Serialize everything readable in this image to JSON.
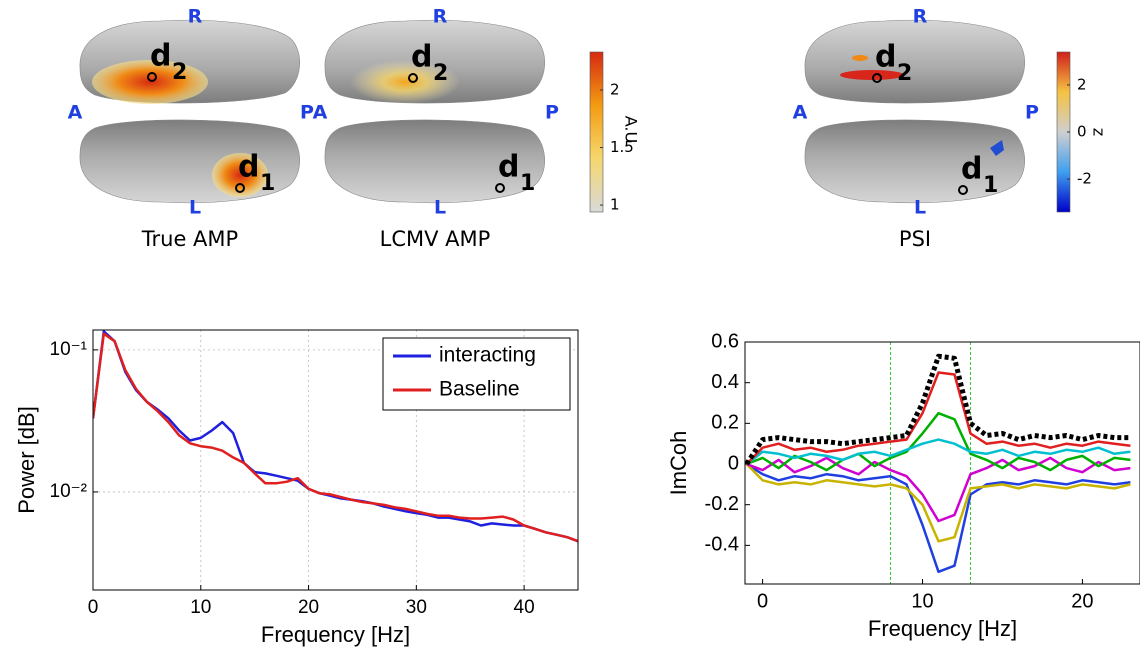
{
  "brain_panels": [
    {
      "title": "True AMP",
      "orientation": {
        "top": "R",
        "left": "A",
        "right": "P",
        "bottom": "L"
      },
      "sources": [
        {
          "letter": "d",
          "index": "2"
        },
        {
          "letter": "d",
          "index": "1"
        }
      ]
    },
    {
      "title": "LCMV AMP",
      "orientation": {
        "top": "R",
        "left": "A",
        "right": "P",
        "bottom": "L"
      },
      "sources": [
        {
          "letter": "d",
          "index": "2"
        },
        {
          "letter": "d",
          "index": "1"
        }
      ]
    },
    {
      "title": "PSI",
      "orientation": {
        "top": "R",
        "left": "A",
        "right": "P",
        "bottom": "L"
      },
      "sources": [
        {
          "letter": "d",
          "index": "2"
        },
        {
          "letter": "d",
          "index": "1"
        }
      ]
    }
  ],
  "colorbars": [
    {
      "label": "A.U.",
      "range": [
        0.94,
        2.33
      ],
      "ticks": [
        1,
        1.5,
        2
      ],
      "colors": [
        "#d9d9d9",
        "#f5d76e",
        "#f39c12",
        "#d62a12"
      ]
    },
    {
      "label": "z",
      "range": [
        -3.4,
        3.4
      ],
      "ticks": [
        -2,
        0,
        2
      ],
      "colors": [
        "#0000c8",
        "#3f9ff0",
        "#cfcfcf",
        "#f5c242",
        "#d0201a"
      ]
    }
  ],
  "chart_data": [
    {
      "type": "line",
      "yscale": "log",
      "grid": true,
      "legend": "top-right",
      "xlabel": "Frequency [Hz]",
      "ylabel": "Power [dB]",
      "xlim": [
        0,
        45
      ],
      "xticks": [
        0,
        10,
        20,
        30,
        40
      ],
      "ylim": [
        0.00204,
        0.138
      ],
      "yticks": [
        {
          "value": 0.01,
          "label": "10⁻²"
        },
        {
          "value": 0.1,
          "label": "10⁻¹"
        }
      ],
      "x": [
        0,
        1,
        2,
        3,
        4,
        5,
        6,
        7,
        8,
        9,
        10,
        11,
        12,
        13,
        14,
        15,
        16,
        17,
        18,
        19,
        20,
        21,
        22,
        23,
        24,
        25,
        26,
        27,
        28,
        29,
        30,
        31,
        32,
        33,
        34,
        35,
        36,
        37,
        38,
        39,
        40,
        41,
        42,
        43,
        44,
        45
      ],
      "series": [
        {
          "name": "interacting",
          "color": "#1f1fe0",
          "values": [
            0.033,
            0.135,
            0.115,
            0.07,
            0.052,
            0.043,
            0.038,
            0.033,
            0.027,
            0.023,
            0.024,
            0.027,
            0.031,
            0.026,
            0.016,
            0.0138,
            0.0135,
            0.013,
            0.0125,
            0.012,
            0.0105,
            0.0098,
            0.0094,
            0.009,
            0.0088,
            0.0086,
            0.0083,
            0.0079,
            0.0076,
            0.0073,
            0.0071,
            0.0069,
            0.0066,
            0.0066,
            0.0064,
            0.0062,
            0.0058,
            0.006,
            0.0059,
            0.0058,
            0.0058,
            0.0055,
            0.0052,
            0.005,
            0.0048,
            0.0045
          ]
        },
        {
          "name": "Baseline",
          "color": "#e01f1f",
          "values": [
            0.033,
            0.13,
            0.115,
            0.072,
            0.053,
            0.043,
            0.037,
            0.031,
            0.025,
            0.022,
            0.021,
            0.0205,
            0.0195,
            0.0175,
            0.016,
            0.0135,
            0.0115,
            0.0115,
            0.0118,
            0.0125,
            0.0105,
            0.0098,
            0.0096,
            0.0092,
            0.0088,
            0.0085,
            0.0083,
            0.0081,
            0.0078,
            0.0076,
            0.0073,
            0.007,
            0.0068,
            0.0068,
            0.0066,
            0.0065,
            0.0065,
            0.0066,
            0.0067,
            0.0064,
            0.0058,
            0.0055,
            0.0052,
            0.005,
            0.0048,
            0.0045
          ]
        }
      ]
    },
    {
      "type": "line",
      "yscale": "linear",
      "grid": false,
      "xlabel": "Frequency [Hz]",
      "ylabel": "ImCoh",
      "xlim": [
        -1.1,
        23.6
      ],
      "xticks": [
        0,
        10,
        20
      ],
      "ylim": [
        -0.59,
        0.6
      ],
      "yticks": [
        -0.4,
        -0.2,
        0,
        0.2,
        0.4,
        0.6
      ],
      "vlines": [
        8,
        13
      ],
      "vline_color": "#33cc33",
      "x": [
        -1,
        0,
        1,
        2,
        3,
        4,
        5,
        6,
        7,
        8,
        9,
        10,
        11,
        12,
        13,
        14,
        15,
        16,
        17,
        18,
        19,
        20,
        21,
        22,
        23
      ],
      "series": [
        {
          "color": "#1f3fe0",
          "values": [
            0,
            -0.05,
            -0.08,
            -0.06,
            -0.07,
            -0.05,
            -0.06,
            -0.08,
            -0.07,
            -0.06,
            -0.1,
            -0.3,
            -0.53,
            -0.5,
            -0.15,
            -0.1,
            -0.09,
            -0.1,
            -0.08,
            -0.09,
            -0.1,
            -0.08,
            -0.09,
            -0.1,
            -0.09
          ]
        },
        {
          "color": "#c8b400",
          "values": [
            0,
            -0.08,
            -0.1,
            -0.09,
            -0.1,
            -0.08,
            -0.09,
            -0.1,
            -0.11,
            -0.1,
            -0.12,
            -0.2,
            -0.38,
            -0.36,
            -0.12,
            -0.11,
            -0.1,
            -0.12,
            -0.1,
            -0.11,
            -0.12,
            -0.1,
            -0.11,
            -0.12,
            -0.1
          ]
        },
        {
          "color": "#d000d0",
          "values": [
            0,
            -0.03,
            0.02,
            -0.04,
            -0.01,
            0.03,
            -0.02,
            -0.05,
            0.01,
            -0.03,
            -0.06,
            -0.15,
            -0.28,
            -0.25,
            -0.05,
            -0.02,
            0.02,
            -0.03,
            -0.01,
            0.03,
            -0.02,
            -0.04,
            0.01,
            -0.03,
            -0.02
          ]
        },
        {
          "color": "#00b000",
          "values": [
            0,
            0.03,
            -0.02,
            0.04,
            0.01,
            -0.03,
            0.02,
            0.05,
            -0.01,
            0.03,
            0.06,
            0.15,
            0.25,
            0.22,
            0.05,
            0.02,
            -0.02,
            0.03,
            0.01,
            -0.03,
            0.02,
            0.04,
            -0.01,
            0.03,
            0.02
          ]
        },
        {
          "color": "#00c0d0",
          "values": [
            0,
            0.06,
            0.05,
            0.03,
            0.05,
            0.04,
            0.02,
            0.05,
            0.06,
            0.04,
            0.07,
            0.1,
            0.12,
            0.1,
            0.06,
            0.05,
            0.07,
            0.04,
            0.06,
            0.05,
            0.07,
            0.06,
            0.08,
            0.05,
            0.06
          ]
        },
        {
          "color": "#e02020",
          "values": [
            0,
            0.08,
            0.1,
            0.07,
            0.08,
            0.06,
            0.07,
            0.09,
            0.1,
            0.11,
            0.12,
            0.25,
            0.45,
            0.44,
            0.15,
            0.1,
            0.11,
            0.09,
            0.1,
            0.08,
            0.1,
            0.09,
            0.11,
            0.1,
            0.09
          ]
        },
        {
          "color": "#000000",
          "style": "dotted",
          "values": [
            0,
            0.12,
            0.13,
            0.12,
            0.11,
            0.11,
            0.1,
            0.11,
            0.12,
            0.13,
            0.14,
            0.3,
            0.53,
            0.52,
            0.2,
            0.14,
            0.15,
            0.12,
            0.14,
            0.13,
            0.14,
            0.12,
            0.14,
            0.13,
            0.13
          ]
        }
      ]
    }
  ]
}
